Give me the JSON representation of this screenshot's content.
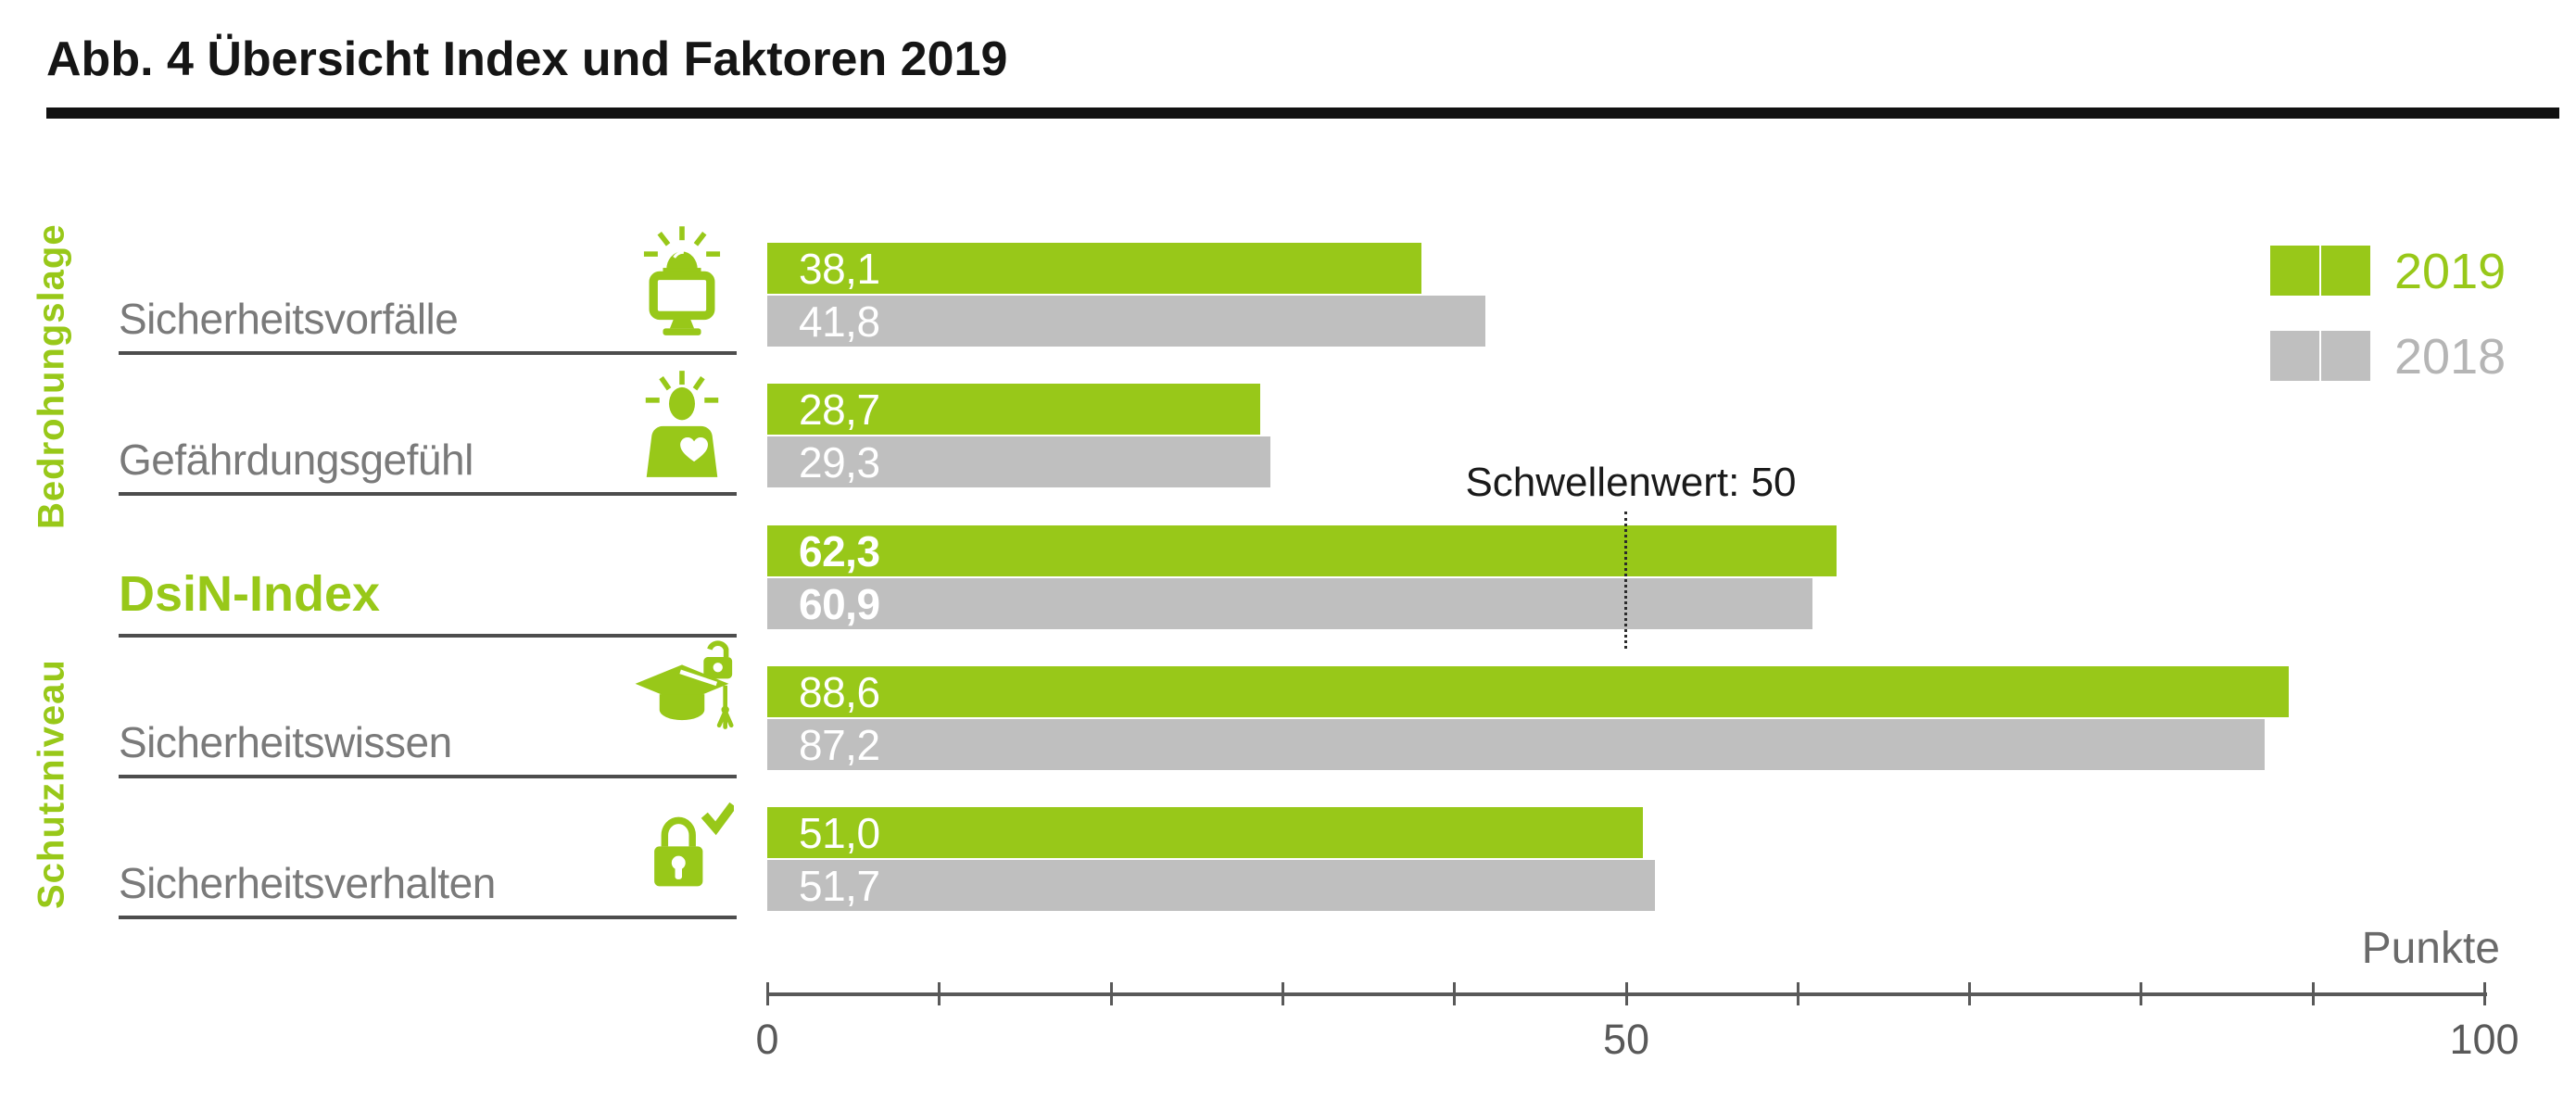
{
  "title": "Abb. 4 Übersicht Index und Faktoren 2019",
  "colors": {
    "accent_green": "#98c819",
    "bar_gray": "#bfbfbf",
    "legend_2018_text": "#b5b5b5",
    "label_gray": "#7a7a7a",
    "axis_gray": "#595959",
    "underline_gray": "#4d4d4d",
    "title_black": "#151515"
  },
  "legend": {
    "items": [
      {
        "label": "2019",
        "color": "#98c819"
      },
      {
        "label": "2018",
        "color": "#bfbfbf"
      }
    ]
  },
  "group_labels": {
    "top": "Bedrohungslage",
    "bottom": "Schutzniveau"
  },
  "threshold": {
    "label": "Schwellenwert: 50",
    "value": 50
  },
  "axis": {
    "min": 0,
    "max": 100,
    "tick_step": 10,
    "tick_labels": {
      "0": "0",
      "50": "50",
      "100": "100"
    },
    "unit_label": "Punkte"
  },
  "rows": [
    {
      "label": "Sicherheitsvorfälle",
      "icon": "siren-monitor-icon",
      "group": "Bedrohungslage",
      "display": {
        "v2019": "38,1",
        "v2018": "41,8"
      },
      "emphasis": false
    },
    {
      "label": "Gefährdungsgefühl",
      "icon": "person-alert-icon",
      "group": "Bedrohungslage",
      "display": {
        "v2019": "28,7",
        "v2018": "29,3"
      },
      "emphasis": false
    },
    {
      "label": "DsiN-Index",
      "icon": null,
      "group": null,
      "display": {
        "v2019": "62,3",
        "v2018": "60,9"
      },
      "emphasis": true
    },
    {
      "label": "Sicherheitswissen",
      "icon": "graduation-lock-icon",
      "group": "Schutzniveau",
      "display": {
        "v2019": "88,6",
        "v2018": "87,2"
      },
      "emphasis": false
    },
    {
      "label": "Sicherheitsverhalten",
      "icon": "lock-check-icon",
      "group": "Schutzniveau",
      "display": {
        "v2019": "51,0",
        "v2018": "51,7"
      },
      "emphasis": false
    }
  ],
  "chart_data": {
    "type": "bar",
    "orientation": "horizontal",
    "title": "Abb. 4 Übersicht Index und Faktoren 2019",
    "categories": [
      "Sicherheitsvorfälle",
      "Gefährdungsgefühl",
      "DsiN-Index",
      "Sicherheitswissen",
      "Sicherheitsverhalten"
    ],
    "series": [
      {
        "name": "2019",
        "color": "#98c819",
        "values": [
          38.1,
          28.7,
          62.3,
          88.6,
          51.0
        ]
      },
      {
        "name": "2018",
        "color": "#bfbfbf",
        "values": [
          41.8,
          29.3,
          60.9,
          87.2,
          51.7
        ]
      }
    ],
    "xlabel": "Punkte",
    "xlim": [
      0,
      100
    ],
    "tick_step": 10,
    "grid": false,
    "legend_position": "top-right",
    "annotations": [
      {
        "text": "Schwellenwert: 50",
        "x": 50,
        "style": "dotted-vertical-line",
        "applies_to": "DsiN-Index"
      }
    ],
    "group_brackets": [
      {
        "label": "Bedrohungslage",
        "categories": [
          "Sicherheitsvorfälle",
          "Gefährdungsgefühl"
        ]
      },
      {
        "label": "Schutzniveau",
        "categories": [
          "Sicherheitswissen",
          "Sicherheitsverhalten"
        ]
      }
    ]
  }
}
